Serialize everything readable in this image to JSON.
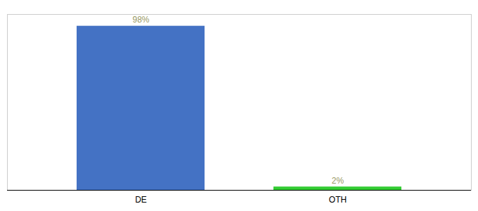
{
  "chart_data": {
    "type": "bar",
    "categories": [
      "DE",
      "OTH"
    ],
    "values": [
      98,
      2
    ],
    "value_labels": [
      "98%",
      "2%"
    ],
    "colors": [
      "#4472C4",
      "#33CC33"
    ],
    "ylim": [
      0,
      105
    ],
    "data_labels": true,
    "tick_labels": "x"
  }
}
